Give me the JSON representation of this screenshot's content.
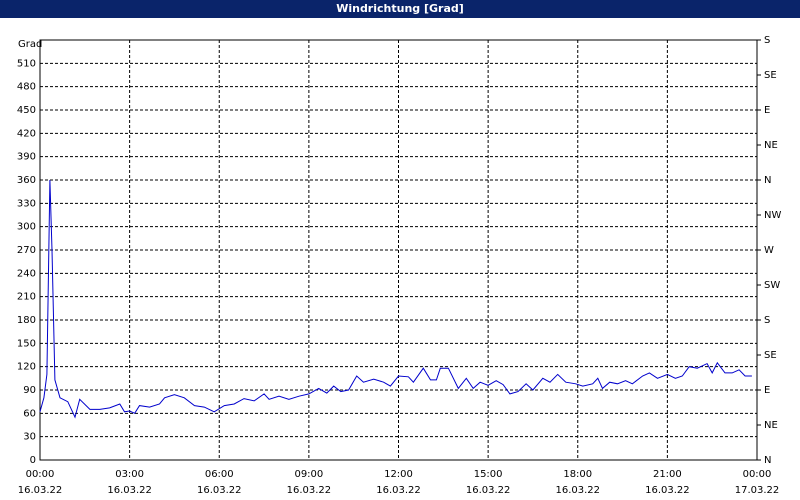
{
  "chart_data": {
    "type": "line",
    "title": "Windrichtung [Grad]",
    "y_label": "Grad",
    "x": [
      0,
      0.13,
      0.23,
      0.33,
      0.4,
      0.5,
      0.67,
      0.93,
      1.17,
      1.33,
      1.67,
      2,
      2.33,
      2.67,
      2.83,
      3,
      3.17,
      3.33,
      3.67,
      4,
      4.17,
      4.5,
      4.83,
      5.17,
      5.5,
      5.83,
      6.17,
      6.5,
      6.83,
      7.17,
      7.5,
      7.67,
      8,
      8.33,
      8.67,
      9,
      9.33,
      9.6,
      9.83,
      10.07,
      10.33,
      10.6,
      10.83,
      11.17,
      11.5,
      11.73,
      12,
      12.33,
      12.5,
      12.83,
      13.07,
      13.27,
      13.4,
      13.67,
      14,
      14.27,
      14.5,
      14.73,
      15,
      15.27,
      15.5,
      15.73,
      16,
      16.27,
      16.5,
      16.83,
      17.07,
      17.33,
      17.6,
      17.93,
      18.17,
      18.5,
      18.67,
      18.83,
      19.07,
      19.33,
      19.6,
      19.83,
      20.17,
      20.4,
      20.67,
      21,
      21.27,
      21.5,
      21.73,
      22,
      22.33,
      22.5,
      22.67,
      22.93,
      23.17,
      23.4,
      23.6,
      23.83
    ],
    "series": [
      {
        "name": "Windrichtung",
        "color": "#0000cc",
        "values": [
          62,
          80,
          110,
          360,
          270,
          103,
          80,
          75,
          55,
          78,
          65,
          65,
          67,
          72,
          62,
          63,
          60,
          70,
          68,
          72,
          80,
          84,
          80,
          70,
          68,
          62,
          70,
          72,
          79,
          76,
          85,
          78,
          82,
          78,
          82,
          85,
          92,
          86,
          95,
          88,
          90,
          108,
          100,
          104,
          100,
          95,
          108,
          107,
          100,
          118,
          103,
          103,
          118,
          118,
          92,
          105,
          92,
          100,
          96,
          102,
          97,
          85,
          88,
          98,
          90,
          105,
          100,
          110,
          100,
          98,
          95,
          98,
          105,
          92,
          100,
          98,
          102,
          98,
          108,
          112,
          105,
          110,
          105,
          108,
          120,
          118,
          124,
          112,
          125,
          112,
          112,
          116,
          108,
          108
        ]
      }
    ],
    "xlim": [
      0,
      24
    ],
    "xticks": [
      {
        "value": 0,
        "label": "00:00 16.03.22"
      },
      {
        "value": 3,
        "label": "03:00 16.03.22"
      },
      {
        "value": 6,
        "label": "06:00 16.03.22"
      },
      {
        "value": 9,
        "label": "09:00 16.03.22"
      },
      {
        "value": 12,
        "label": "12:00 16.03.22"
      },
      {
        "value": 15,
        "label": "15:00 16.03.22"
      },
      {
        "value": 18,
        "label": "18:00 16.03.22"
      },
      {
        "value": 21,
        "label": "21:00 16.03.22"
      },
      {
        "value": 24,
        "label": "00:00 17.03.22"
      }
    ],
    "ylim": [
      0,
      540
    ],
    "yticks": [
      0,
      30,
      60,
      90,
      120,
      150,
      180,
      210,
      240,
      270,
      300,
      330,
      360,
      390,
      420,
      450,
      480,
      510
    ],
    "y2lim": [
      0,
      540
    ],
    "y2ticks": [
      {
        "value": 0,
        "label": "N"
      },
      {
        "value": 45,
        "label": "NE"
      },
      {
        "value": 90,
        "label": "E"
      },
      {
        "value": 135,
        "label": "SE"
      },
      {
        "value": 180,
        "label": "S"
      },
      {
        "value": 225,
        "label": "SW"
      },
      {
        "value": 270,
        "label": "W"
      },
      {
        "value": 315,
        "label": "NW"
      },
      {
        "value": 360,
        "label": "N"
      },
      {
        "value": 405,
        "label": "NE"
      },
      {
        "value": 450,
        "label": "E"
      },
      {
        "value": 495,
        "label": "SE"
      },
      {
        "value": 540,
        "label": "S"
      }
    ],
    "grid": true
  }
}
